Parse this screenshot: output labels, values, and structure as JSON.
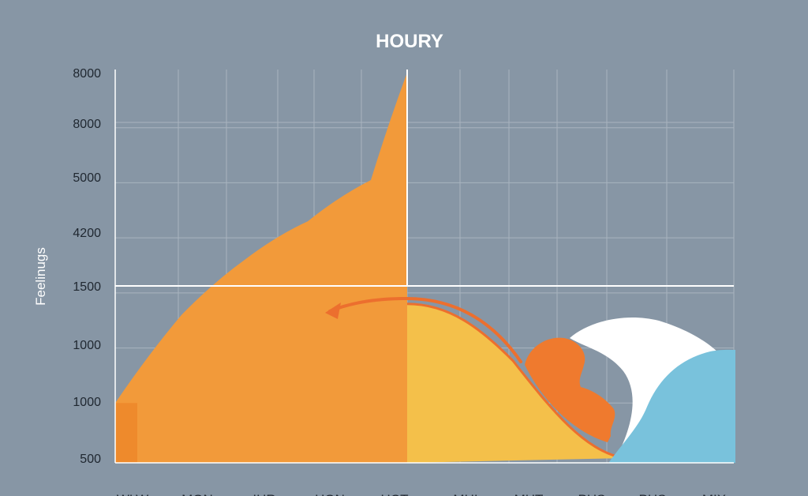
{
  "colors": {
    "background": "#8796a5",
    "grid": "#a9b4bf",
    "crosshair": "#ffffff",
    "text_dark": "#1f2730",
    "text_light": "#ffffff",
    "area_orange": "#f29a3a",
    "area_yellow": "#f4c04a",
    "arrow": "#ec6f2e",
    "head": "#ef7a2e",
    "pillow": "#ffffff",
    "blanket": "#79c2dc"
  },
  "chart_data": {
    "type": "area",
    "title": "HOURY",
    "ylabel": "Feelinugs",
    "xlabel": "",
    "y_tick_labels": [
      "8000",
      "8000",
      "5000",
      "4200",
      "1500",
      "1000",
      "1000",
      "500"
    ],
    "x_tick_labels": [
      "WLW",
      "MON",
      "IHR",
      "HON",
      "HCT",
      "MHI",
      "MHT",
      "PHS",
      "PHS",
      "MIX"
    ],
    "grid": true,
    "legend": "none",
    "series": [
      {
        "values": [
          1.0,
          2.6,
          3.6,
          4.3,
          5.05,
          7.0
        ]
      },
      {
        "values": [
          2.8,
          2.2,
          1.0,
          0.0
        ]
      }
    ]
  }
}
